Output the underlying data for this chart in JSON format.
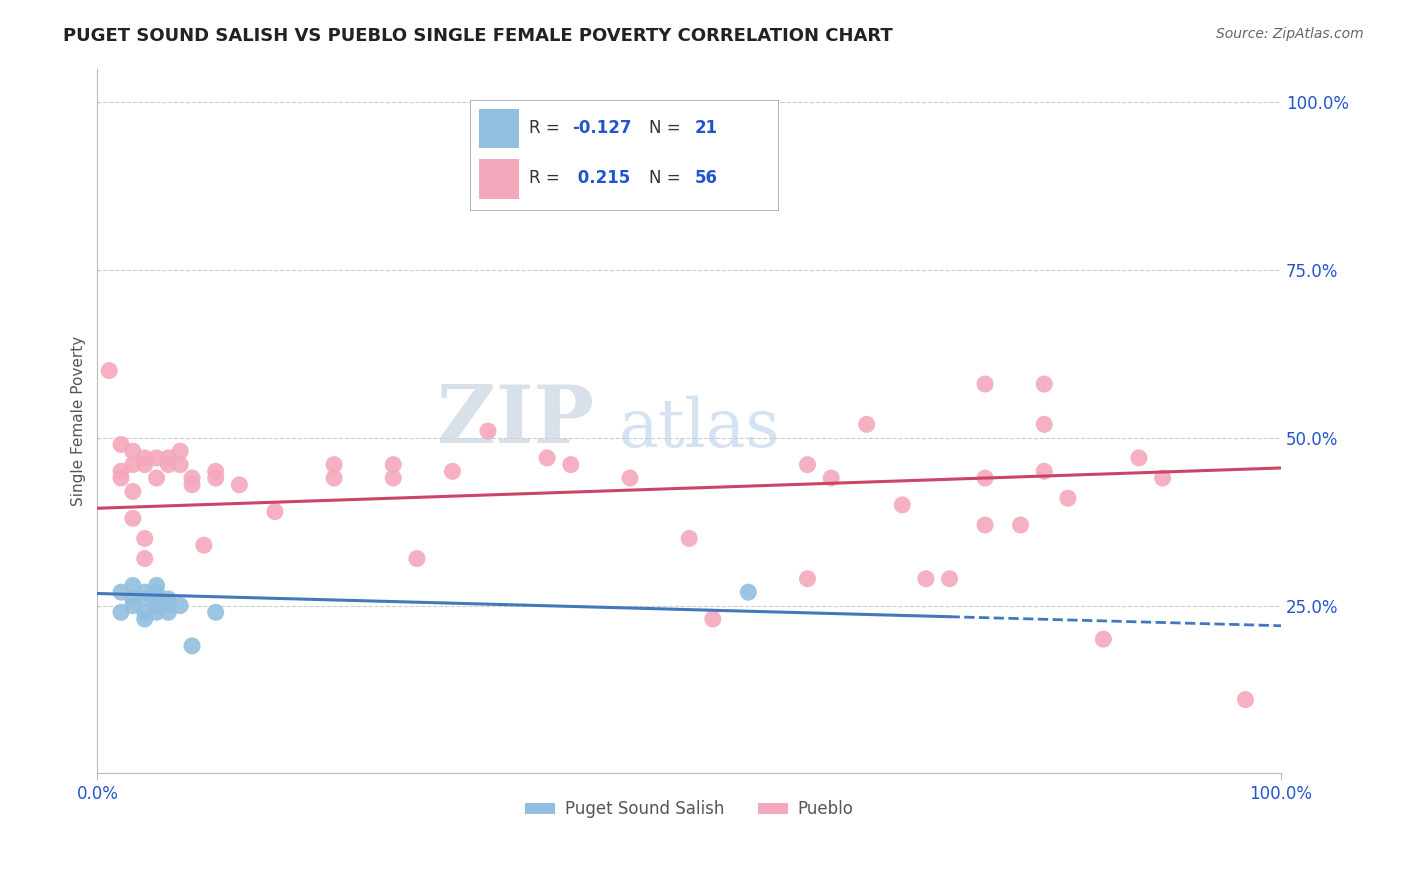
{
  "title": "PUGET SOUND SALISH VS PUEBLO SINGLE FEMALE POVERTY CORRELATION CHART",
  "source": "Source: ZipAtlas.com",
  "ylabel": "Single Female Poverty",
  "xlim": [
    0,
    1
  ],
  "ylim": [
    0,
    1.05
  ],
  "ytick_labels": [
    "25.0%",
    "50.0%",
    "75.0%",
    "100.0%"
  ],
  "ytick_values": [
    0.25,
    0.5,
    0.75,
    1.0
  ],
  "blue_label": "Puget Sound Salish",
  "pink_label": "Pueblo",
  "blue_r": -0.127,
  "blue_n": 21,
  "pink_r": 0.215,
  "pink_n": 56,
  "blue_color": "#92bfdf",
  "pink_color": "#f4a8bc",
  "blue_line_color": "#4477bb",
  "pink_line_color": "#cc4466",
  "legend_text_color": "#2255cc",
  "background_color": "#ffffff",
  "watermark_zip": "ZIP",
  "watermark_atlas": "atlas",
  "blue_points": [
    [
      0.02,
      0.27
    ],
    [
      0.02,
      0.24
    ],
    [
      0.03,
      0.26
    ],
    [
      0.03,
      0.28
    ],
    [
      0.03,
      0.25
    ],
    [
      0.04,
      0.27
    ],
    [
      0.04,
      0.26
    ],
    [
      0.04,
      0.24
    ],
    [
      0.04,
      0.23
    ],
    [
      0.05,
      0.28
    ],
    [
      0.05,
      0.25
    ],
    [
      0.05,
      0.24
    ],
    [
      0.05,
      0.26
    ],
    [
      0.05,
      0.27
    ],
    [
      0.06,
      0.26
    ],
    [
      0.06,
      0.25
    ],
    [
      0.06,
      0.24
    ],
    [
      0.07,
      0.25
    ],
    [
      0.08,
      0.19
    ],
    [
      0.1,
      0.24
    ],
    [
      0.55,
      0.27
    ]
  ],
  "pink_points": [
    [
      0.01,
      0.6
    ],
    [
      0.02,
      0.49
    ],
    [
      0.02,
      0.45
    ],
    [
      0.02,
      0.44
    ],
    [
      0.03,
      0.48
    ],
    [
      0.03,
      0.46
    ],
    [
      0.03,
      0.42
    ],
    [
      0.03,
      0.38
    ],
    [
      0.04,
      0.47
    ],
    [
      0.04,
      0.46
    ],
    [
      0.04,
      0.35
    ],
    [
      0.04,
      0.32
    ],
    [
      0.05,
      0.47
    ],
    [
      0.05,
      0.44
    ],
    [
      0.06,
      0.46
    ],
    [
      0.06,
      0.47
    ],
    [
      0.07,
      0.46
    ],
    [
      0.07,
      0.48
    ],
    [
      0.08,
      0.44
    ],
    [
      0.08,
      0.43
    ],
    [
      0.09,
      0.34
    ],
    [
      0.1,
      0.45
    ],
    [
      0.1,
      0.44
    ],
    [
      0.12,
      0.43
    ],
    [
      0.15,
      0.39
    ],
    [
      0.2,
      0.46
    ],
    [
      0.2,
      0.44
    ],
    [
      0.25,
      0.46
    ],
    [
      0.25,
      0.44
    ],
    [
      0.27,
      0.32
    ],
    [
      0.3,
      0.45
    ],
    [
      0.33,
      0.51
    ],
    [
      0.38,
      0.47
    ],
    [
      0.4,
      0.46
    ],
    [
      0.45,
      0.44
    ],
    [
      0.5,
      0.35
    ],
    [
      0.52,
      0.23
    ],
    [
      0.6,
      0.46
    ],
    [
      0.6,
      0.29
    ],
    [
      0.62,
      0.44
    ],
    [
      0.65,
      0.52
    ],
    [
      0.68,
      0.4
    ],
    [
      0.7,
      0.29
    ],
    [
      0.72,
      0.29
    ],
    [
      0.75,
      0.58
    ],
    [
      0.75,
      0.44
    ],
    [
      0.75,
      0.37
    ],
    [
      0.78,
      0.37
    ],
    [
      0.8,
      0.58
    ],
    [
      0.8,
      0.52
    ],
    [
      0.8,
      0.45
    ],
    [
      0.82,
      0.41
    ],
    [
      0.85,
      0.2
    ],
    [
      0.88,
      0.47
    ],
    [
      0.9,
      0.44
    ],
    [
      0.97,
      0.11
    ]
  ]
}
